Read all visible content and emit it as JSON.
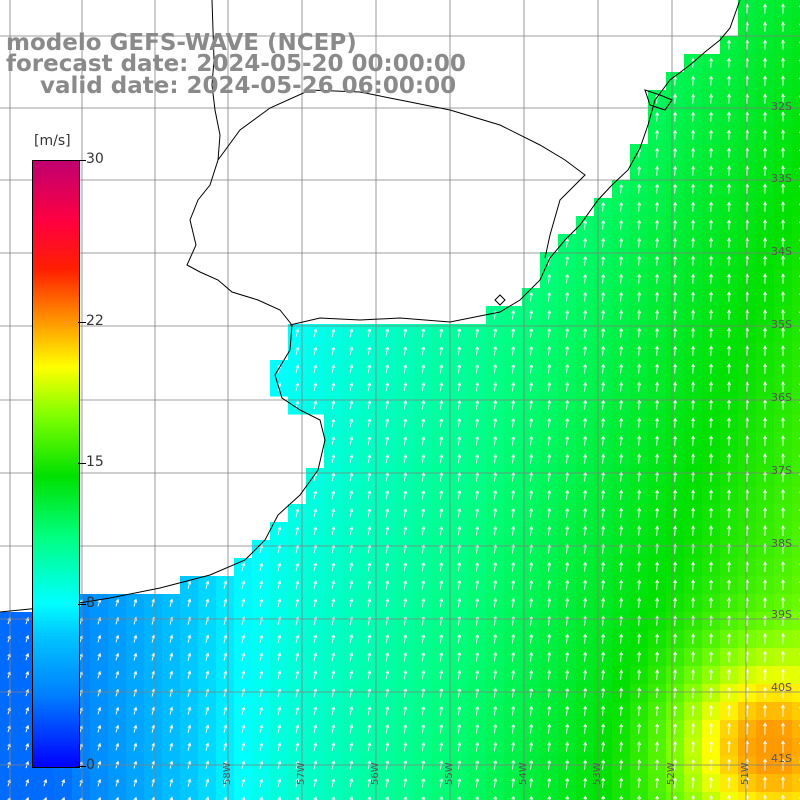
{
  "title": {
    "line1": "modelo GEFS-WAVE (NCEP)",
    "line2": "forecast date: 2024-05-20 00:00:00",
    "line3": "valid date: 2024-05-26 06:00:00"
  },
  "colorbar": {
    "unit": "[m/s]",
    "min": 0,
    "max": 30,
    "ticks": [
      "30",
      "22",
      "15",
      "8",
      "0"
    ],
    "tick_values": [
      30,
      22,
      15,
      8,
      0
    ]
  },
  "latitude_labels": [
    "32S",
    "33S",
    "34S",
    "35S",
    "36S",
    "37S",
    "38S",
    "39S",
    "40S",
    "41S"
  ],
  "longitude_labels": [
    "58W",
    "57W",
    "56W",
    "55W",
    "54W",
    "53W",
    "52W",
    "51W"
  ],
  "colors": {
    "land": "#ffffff",
    "coastline": "#000000",
    "grid": "#7f7f7f",
    "arrows": "#ffffff",
    "title_text": "#8a8a8a"
  },
  "field": {
    "variable": "wind speed",
    "arrow_direction": "toward north-northeast"
  }
}
